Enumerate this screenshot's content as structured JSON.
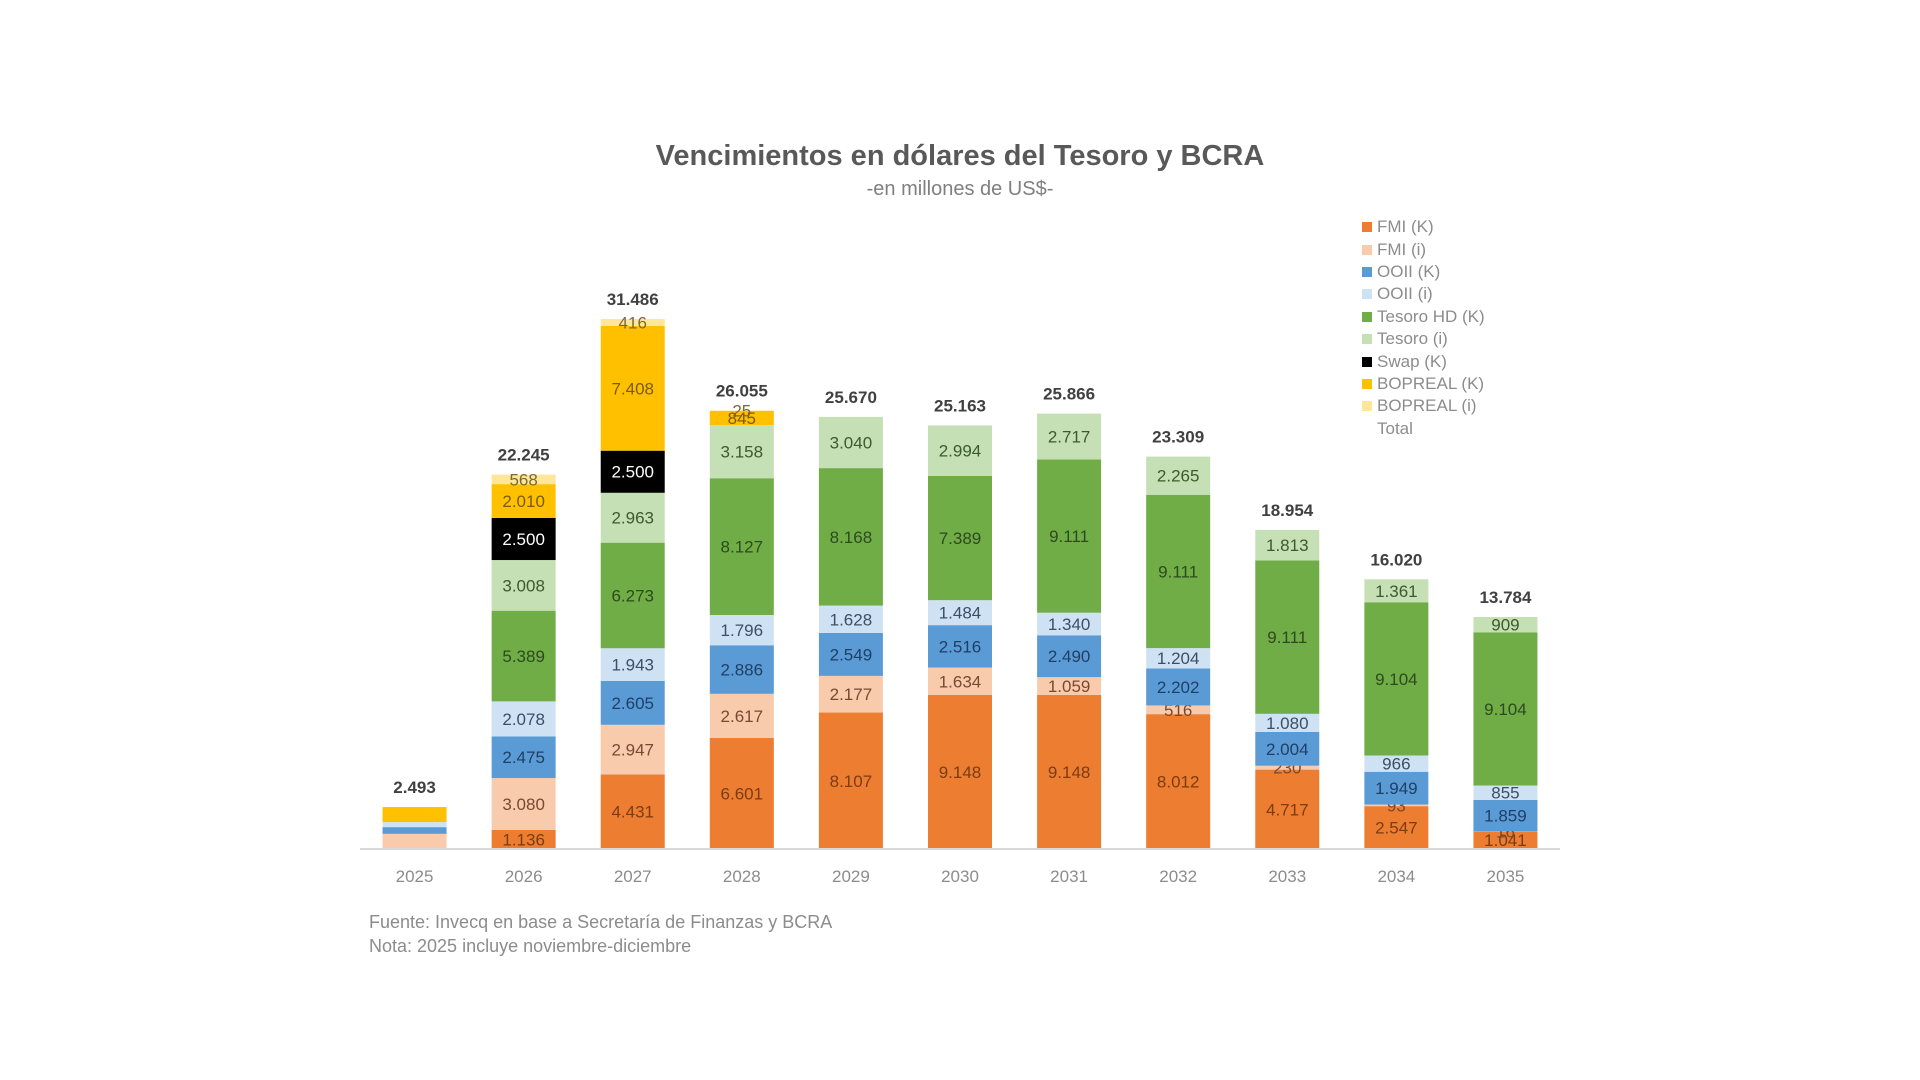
{
  "chart_data": {
    "type": "bar",
    "stacked": true,
    "title": "Vencimientos en dólares del Tesoro y BCRA",
    "subtitle": "-en millones de US$-",
    "xlabel": "",
    "ylabel": "",
    "ylim": [
      0,
      33000
    ],
    "grid": false,
    "legend_position": "top-right",
    "categories": [
      "2025",
      "2026",
      "2027",
      "2028",
      "2029",
      "2030",
      "2031",
      "2032",
      "2033",
      "2034",
      "2035"
    ],
    "series": [
      {
        "name": "FMI (K)",
        "color": "#ed7d31",
        "label_color": "#7a3d12",
        "values": [
          0,
          1136,
          4431,
          6601,
          8107,
          9148,
          9148,
          8012,
          4717,
          2547,
          1041
        ]
      },
      {
        "name": "FMI (i)",
        "color": "#f8cbad",
        "label_color": "#7a4a2e",
        "values": [
          900,
          3080,
          2947,
          2617,
          2177,
          1634,
          1059,
          516,
          230,
          93,
          16
        ]
      },
      {
        "name": "OOII (K)",
        "color": "#5b9bd5",
        "label_color": "#1f3f66",
        "values": [
          400,
          2475,
          2605,
          2886,
          2549,
          2516,
          2490,
          2202,
          2004,
          1949,
          1859
        ]
      },
      {
        "name": "OOII (i)",
        "color": "#cfe2f3",
        "label_color": "#3b4f66",
        "values": [
          300,
          2078,
          1943,
          1796,
          1628,
          1484,
          1340,
          1204,
          1080,
          966,
          855
        ]
      },
      {
        "name": "Tesoro HD (K)",
        "color": "#70ad47",
        "label_color": "#2d4a1c",
        "values": [
          0,
          5389,
          6273,
          8127,
          8168,
          7389,
          9111,
          9111,
          9111,
          9104,
          9104
        ]
      },
      {
        "name": "Tesoro (i)",
        "color": "#c5e0b4",
        "label_color": "#3d5a2c",
        "values": [
          0,
          3008,
          2963,
          3158,
          3040,
          2994,
          2717,
          2265,
          1813,
          1361,
          909
        ]
      },
      {
        "name": "Swap (K)",
        "color": "#000000",
        "label_color": "#ffffff",
        "values": [
          0,
          2500,
          2500,
          0,
          0,
          0,
          0,
          0,
          0,
          0,
          0
        ]
      },
      {
        "name": "BOPREAL (K)",
        "color": "#ffc000",
        "label_color": "#7a5c00",
        "values": [
          893,
          2010,
          7408,
          845,
          0,
          0,
          0,
          0,
          0,
          0,
          0
        ]
      },
      {
        "name": "BOPREAL (i)",
        "color": "#ffe699",
        "label_color": "#7a6a33",
        "values": [
          0,
          568,
          416,
          25,
          0,
          0,
          0,
          0,
          0,
          0,
          0
        ]
      }
    ],
    "show_segment_labels": [
      false,
      true,
      true,
      true,
      true,
      true,
      true,
      true,
      true,
      true,
      true
    ],
    "totals": [
      "2.493",
      "22.245",
      "31.486",
      "26.055",
      "25.670",
      "25.163",
      "25.866",
      "23.309",
      "18.954",
      "16.020",
      "13.784"
    ],
    "total_values": [
      2493,
      22245,
      31486,
      26055,
      25670,
      25163,
      25866,
      23309,
      18954,
      16020,
      13784
    ],
    "legend": [
      "FMI (K)",
      "FMI (i)",
      "OOII (K)",
      "OOII (i)",
      "Tesoro HD (K)",
      "Tesoro (i)",
      "Swap (K)",
      "BOPREAL (K)",
      "BOPREAL (i)",
      "Total"
    ]
  },
  "notes": {
    "source": "Fuente: Invecq en base a Secretaría de Finanzas y BCRA",
    "note": "Nota: 2025 incluye noviembre-diciembre"
  }
}
